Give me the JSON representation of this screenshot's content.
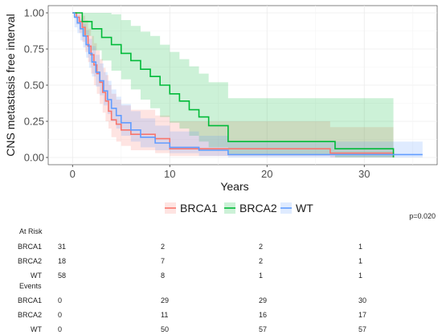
{
  "chart_data": {
    "type": "line",
    "xlabel": "Years",
    "ylabel": "CNS metastasis free interval",
    "xlim": [
      -2.5,
      37.5
    ],
    "ylim": [
      -0.05,
      1.05
    ],
    "x_ticks": [
      "0",
      "10",
      "20",
      "30"
    ],
    "y_ticks": [
      "0.00",
      "0.25",
      "0.50",
      "0.75",
      "1.00"
    ],
    "grid": true,
    "legend_position": "bottom",
    "series": [
      {
        "name": "BRCA1",
        "color": "#F8766D",
        "times": [
          0.4,
          0.7,
          1.0,
          1.3,
          1.6,
          1.9,
          2.2,
          2.5,
          2.8,
          3.1,
          3.4,
          3.7,
          4.0,
          4.5,
          5.0,
          6.0,
          8.5,
          10.0,
          26.5,
          33.0
        ],
        "surv": [
          0.97,
          0.94,
          0.9,
          0.84,
          0.77,
          0.71,
          0.64,
          0.58,
          0.52,
          0.45,
          0.39,
          0.32,
          0.26,
          0.23,
          0.19,
          0.16,
          0.13,
          0.06,
          0.03,
          0.0
        ],
        "upper": [
          1.0,
          1.0,
          0.98,
          0.95,
          0.89,
          0.84,
          0.79,
          0.74,
          0.68,
          0.62,
          0.57,
          0.5,
          0.44,
          0.4,
          0.36,
          0.33,
          0.29,
          0.25,
          0.21,
          0.21
        ],
        "lower": [
          0.92,
          0.86,
          0.8,
          0.73,
          0.66,
          0.58,
          0.5,
          0.44,
          0.37,
          0.31,
          0.25,
          0.2,
          0.14,
          0.11,
          0.08,
          0.05,
          0.03,
          0.01,
          0.0,
          0.0
        ]
      },
      {
        "name": "BRCA2",
        "color": "#00BA38",
        "times": [
          1.0,
          2.0,
          3.0,
          4.0,
          5.0,
          6.0,
          7.0,
          8.0,
          9.0,
          10.0,
          11.0,
          12.0,
          13.0,
          14.0,
          16.0,
          27.0,
          33.0
        ],
        "surv": [
          0.94,
          0.89,
          0.83,
          0.78,
          0.72,
          0.67,
          0.61,
          0.56,
          0.5,
          0.44,
          0.39,
          0.33,
          0.28,
          0.22,
          0.11,
          0.06,
          0.0
        ],
        "upper": [
          1.0,
          1.0,
          1.0,
          0.99,
          0.95,
          0.91,
          0.87,
          0.84,
          0.78,
          0.73,
          0.68,
          0.63,
          0.58,
          0.52,
          0.41,
          0.41,
          0.41
        ],
        "lower": [
          0.84,
          0.74,
          0.67,
          0.6,
          0.54,
          0.47,
          0.4,
          0.34,
          0.28,
          0.24,
          0.2,
          0.15,
          0.11,
          0.07,
          0.02,
          0.0,
          0.0
        ]
      },
      {
        "name": "WT",
        "color": "#619CFF",
        "times": [
          0.2,
          0.5,
          0.8,
          1.1,
          1.4,
          1.7,
          2.0,
          2.4,
          2.8,
          3.2,
          3.6,
          4.0,
          4.5,
          5.0,
          6.0,
          7.0,
          8.5,
          10.0,
          13.0,
          16.0,
          36.0
        ],
        "surv": [
          0.97,
          0.93,
          0.89,
          0.84,
          0.78,
          0.72,
          0.66,
          0.59,
          0.53,
          0.46,
          0.4,
          0.34,
          0.29,
          0.24,
          0.19,
          0.14,
          0.1,
          0.07,
          0.05,
          0.02,
          0.02
        ],
        "upper": [
          1.0,
          0.99,
          0.96,
          0.92,
          0.88,
          0.82,
          0.77,
          0.71,
          0.65,
          0.59,
          0.53,
          0.47,
          0.42,
          0.37,
          0.32,
          0.27,
          0.22,
          0.18,
          0.15,
          0.11,
          0.11
        ],
        "lower": [
          0.9,
          0.86,
          0.81,
          0.76,
          0.69,
          0.62,
          0.56,
          0.49,
          0.43,
          0.36,
          0.3,
          0.25,
          0.2,
          0.15,
          0.11,
          0.07,
          0.05,
          0.03,
          0.01,
          0.0,
          0.0
        ]
      }
    ]
  },
  "p_value": "p=0.020",
  "table": {
    "at_risk_title": "At Risk",
    "events_title": "Events",
    "at_risk": [
      {
        "label": "BRCA1",
        "values": [
          "31",
          "2",
          "2",
          "1"
        ]
      },
      {
        "label": "BRCA2",
        "values": [
          "18",
          "7",
          "2",
          "1"
        ]
      },
      {
        "label": "WT",
        "values": [
          "58",
          "8",
          "1",
          "1"
        ]
      }
    ],
    "events": [
      {
        "label": "BRCA1",
        "values": [
          "0",
          "29",
          "29",
          "30"
        ]
      },
      {
        "label": "BRCA2",
        "values": [
          "0",
          "11",
          "16",
          "17"
        ]
      },
      {
        "label": "WT",
        "values": [
          "0",
          "50",
          "57",
          "57"
        ]
      }
    ]
  }
}
